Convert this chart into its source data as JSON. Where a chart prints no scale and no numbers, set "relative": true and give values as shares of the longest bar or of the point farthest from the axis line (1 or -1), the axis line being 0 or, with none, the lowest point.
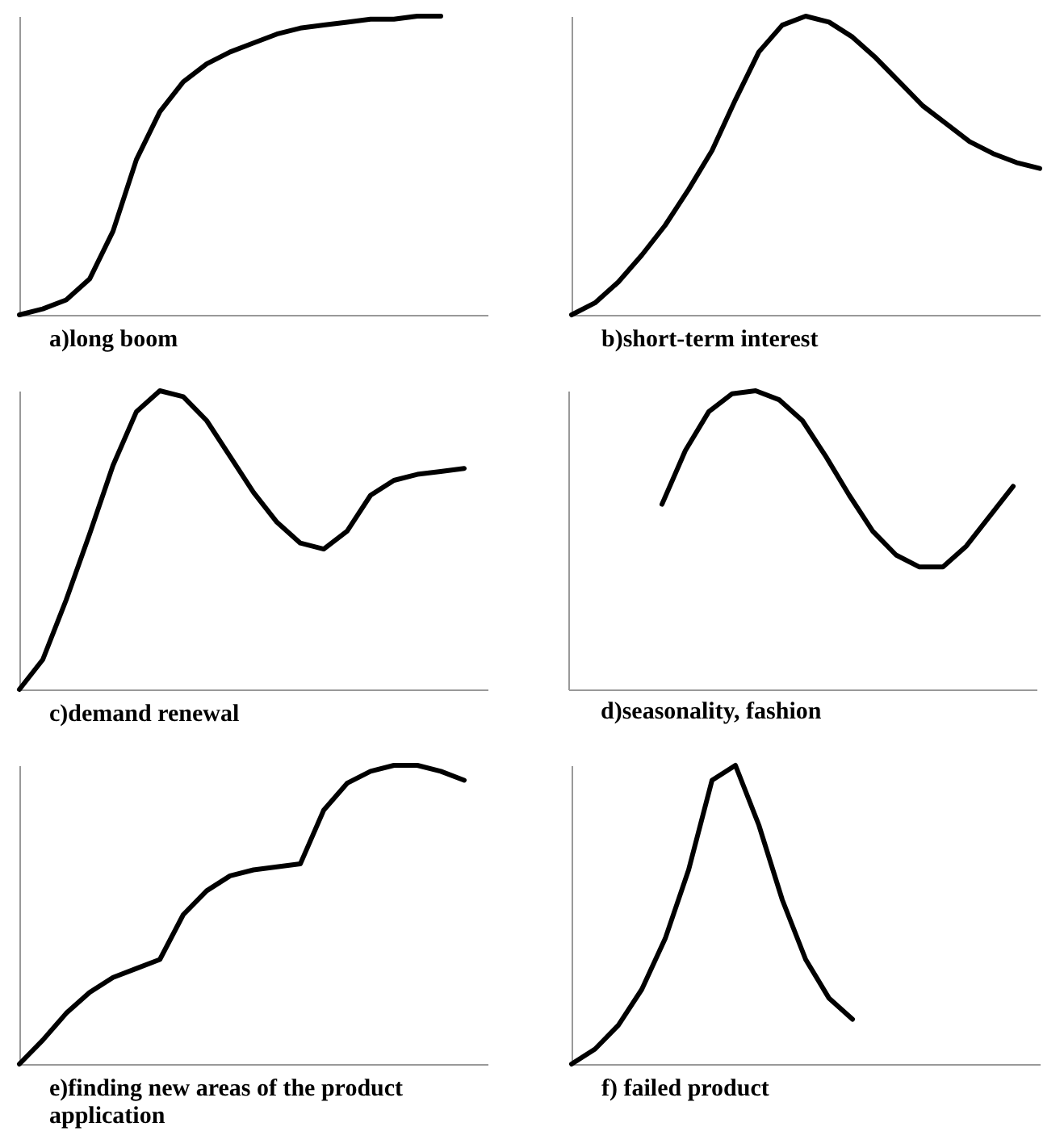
{
  "chart_data": [
    {
      "type": "line",
      "title": "a)long boom",
      "relative": true,
      "categories": [
        null,
        null,
        null,
        null,
        null,
        null,
        null,
        null,
        null,
        null,
        null,
        null,
        null,
        null,
        null,
        null,
        null,
        null,
        null,
        null,
        null
      ],
      "series": [
        {
          "color": "#000000",
          "values": [
            0,
            0.02,
            0.05,
            0.12,
            0.28,
            0.52,
            0.68,
            0.78,
            0.84,
            0.88,
            0.91,
            0.94,
            0.96,
            0.97,
            0.98,
            0.99,
            0.99,
            1,
            1,
            null,
            null
          ]
        }
      ]
    },
    {
      "type": "line",
      "title": "b)short-term interest",
      "relative": true,
      "categories": [
        null,
        null,
        null,
        null,
        null,
        null,
        null,
        null,
        null,
        null,
        null,
        null,
        null,
        null,
        null,
        null,
        null,
        null,
        null,
        null,
        null
      ],
      "series": [
        {
          "color": "#000000",
          "values": [
            0,
            0.04,
            0.11,
            0.2,
            0.3,
            0.42,
            0.55,
            0.72,
            0.88,
            0.97,
            1,
            0.98,
            0.93,
            0.86,
            0.78,
            0.7,
            0.64,
            0.58,
            0.54,
            0.51,
            0.49
          ]
        }
      ]
    },
    {
      "type": "line",
      "title": "c)demand renewal",
      "relative": true,
      "categories": [
        null,
        null,
        null,
        null,
        null,
        null,
        null,
        null,
        null,
        null,
        null,
        null,
        null,
        null,
        null,
        null,
        null,
        null,
        null,
        null,
        null
      ],
      "series": [
        {
          "color": "#000000",
          "values": [
            0,
            0.1,
            0.3,
            0.52,
            0.75,
            0.93,
            1,
            0.98,
            0.9,
            0.78,
            0.66,
            0.56,
            0.49,
            0.47,
            0.53,
            0.65,
            0.7,
            0.72,
            0.73,
            0.74,
            null
          ]
        }
      ]
    },
    {
      "type": "line",
      "title": "d)seasonality, fashion",
      "relative": true,
      "categories": [
        null,
        null,
        null,
        null,
        null,
        null,
        null,
        null,
        null,
        null,
        null,
        null,
        null,
        null,
        null,
        null,
        null,
        null,
        null,
        null,
        null
      ],
      "series": [
        {
          "color": "#000000",
          "values": [
            null,
            null,
            null,
            null,
            0.62,
            0.8,
            0.93,
            0.99,
            1,
            0.97,
            0.9,
            0.78,
            0.65,
            0.53,
            0.45,
            0.41,
            0.41,
            0.48,
            0.58,
            0.68,
            null
          ]
        }
      ]
    },
    {
      "type": "line",
      "title": "e)finding new areas of the product application",
      "relative": true,
      "categories": [
        null,
        null,
        null,
        null,
        null,
        null,
        null,
        null,
        null,
        null,
        null,
        null,
        null,
        null,
        null,
        null,
        null,
        null,
        null,
        null,
        null
      ],
      "series": [
        {
          "color": "#000000",
          "values": [
            0,
            0.08,
            0.17,
            0.24,
            0.29,
            0.32,
            0.35,
            0.5,
            0.58,
            0.63,
            0.65,
            0.66,
            0.67,
            0.85,
            0.94,
            0.98,
            1,
            1,
            0.98,
            0.95,
            null
          ]
        }
      ]
    },
    {
      "type": "line",
      "title": "f) failed product",
      "relative": true,
      "categories": [
        null,
        null,
        null,
        null,
        null,
        null,
        null,
        null,
        null,
        null,
        null,
        null,
        null,
        null,
        null,
        null,
        null,
        null,
        null,
        null,
        null
      ],
      "series": [
        {
          "color": "#000000",
          "values": [
            0,
            0.05,
            0.13,
            0.25,
            0.42,
            0.65,
            0.95,
            1,
            0.8,
            0.55,
            0.35,
            0.22,
            0.15,
            null,
            null,
            null,
            null,
            null,
            null,
            null,
            null
          ]
        }
      ]
    }
  ]
}
